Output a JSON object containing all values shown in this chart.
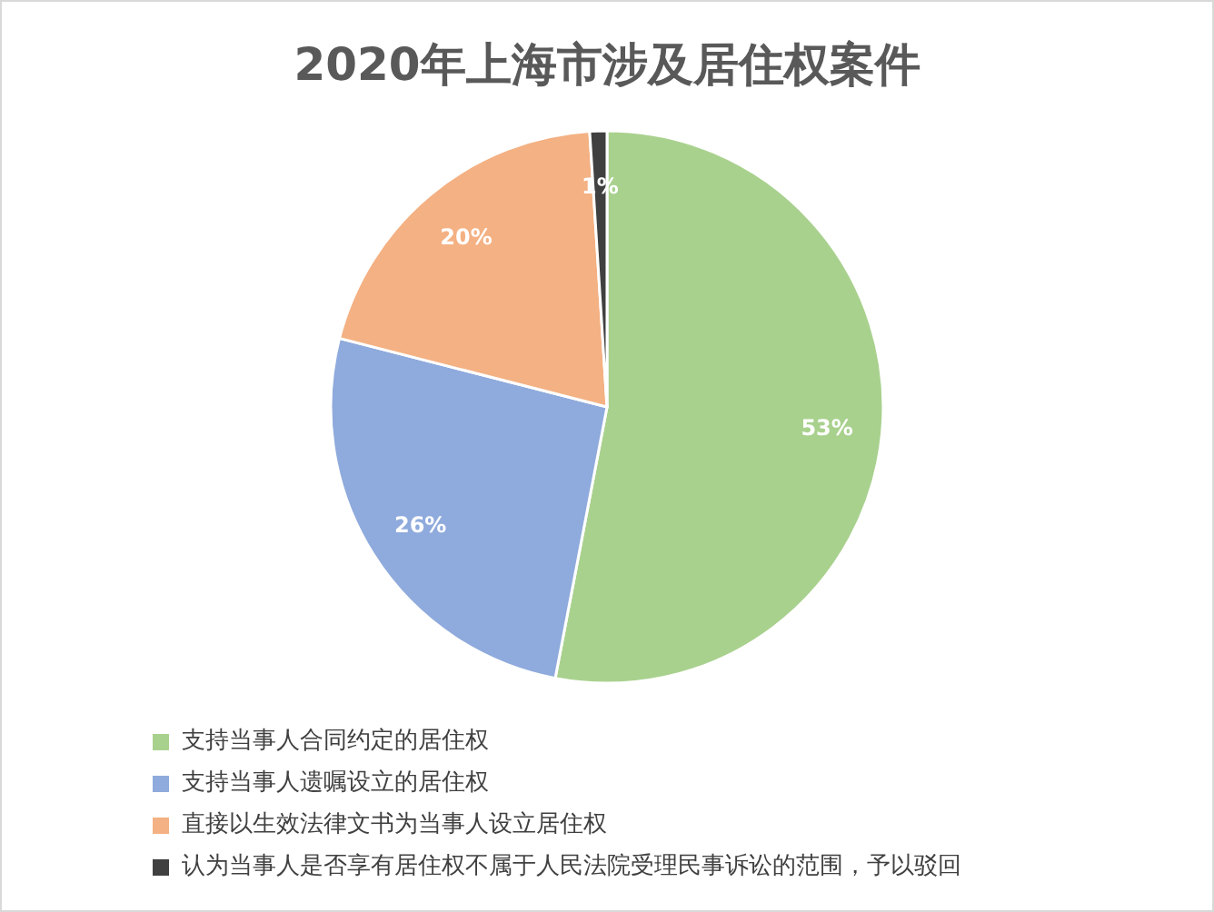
{
  "chart_data": {
    "type": "pie",
    "title": "2020年上海市涉及居住权案件",
    "categories": [
      "支持当事人合同约定的居住权",
      "支持当事人遗嘱设立的居住权",
      "直接以生效法律文书为当事人设立居住权",
      "认为当事人是否享有居住权不属于人民法院受理民事诉讼的范围，予以驳回"
    ],
    "values": [
      53,
      26,
      20,
      1
    ],
    "colors": [
      "#a9d18e",
      "#8faadc",
      "#f4b183",
      "#404040"
    ],
    "value_labels": [
      "53%",
      "26%",
      "20%",
      "1%"
    ],
    "legend": "bottom"
  }
}
